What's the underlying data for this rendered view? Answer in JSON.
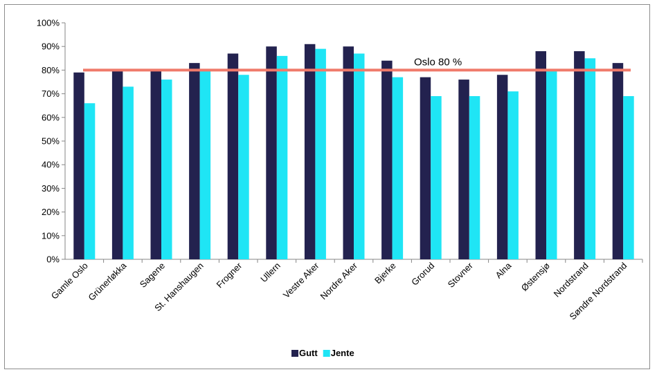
{
  "chart_data": {
    "type": "bar",
    "categories": [
      "Gamle Oslo",
      "Grünerløkka",
      "Sagene",
      "St. Hanshaugen",
      "Frogner",
      "Ullern",
      "Vestre Aker",
      "Nordre Aker",
      "Bjerke",
      "Grorud",
      "Stovner",
      "Alna",
      "Østensjø",
      "Nordstrand",
      "Søndre Nordstrand"
    ],
    "series": [
      {
        "name": "Gutt",
        "color": "#23224f",
        "values": [
          79,
          80,
          80,
          83,
          87,
          90,
          91,
          90,
          84,
          77,
          76,
          78,
          88,
          88,
          83
        ]
      },
      {
        "name": "Jente",
        "color": "#1fe5f5",
        "values": [
          66,
          73,
          76,
          80,
          78,
          86,
          89,
          87,
          77,
          69,
          69,
          71,
          80,
          85,
          69
        ]
      }
    ],
    "ylim": [
      0,
      100
    ],
    "yticks": [
      "0%",
      "10%",
      "20%",
      "30%",
      "40%",
      "50%",
      "60%",
      "70%",
      "80%",
      "90%",
      "100%"
    ],
    "reference_line": {
      "value": 80,
      "label": "Oslo 80 %",
      "color": "#f07a6a"
    },
    "legend_position": "bottom-center",
    "grid": false,
    "title": "",
    "xlabel": "",
    "ylabel": ""
  }
}
